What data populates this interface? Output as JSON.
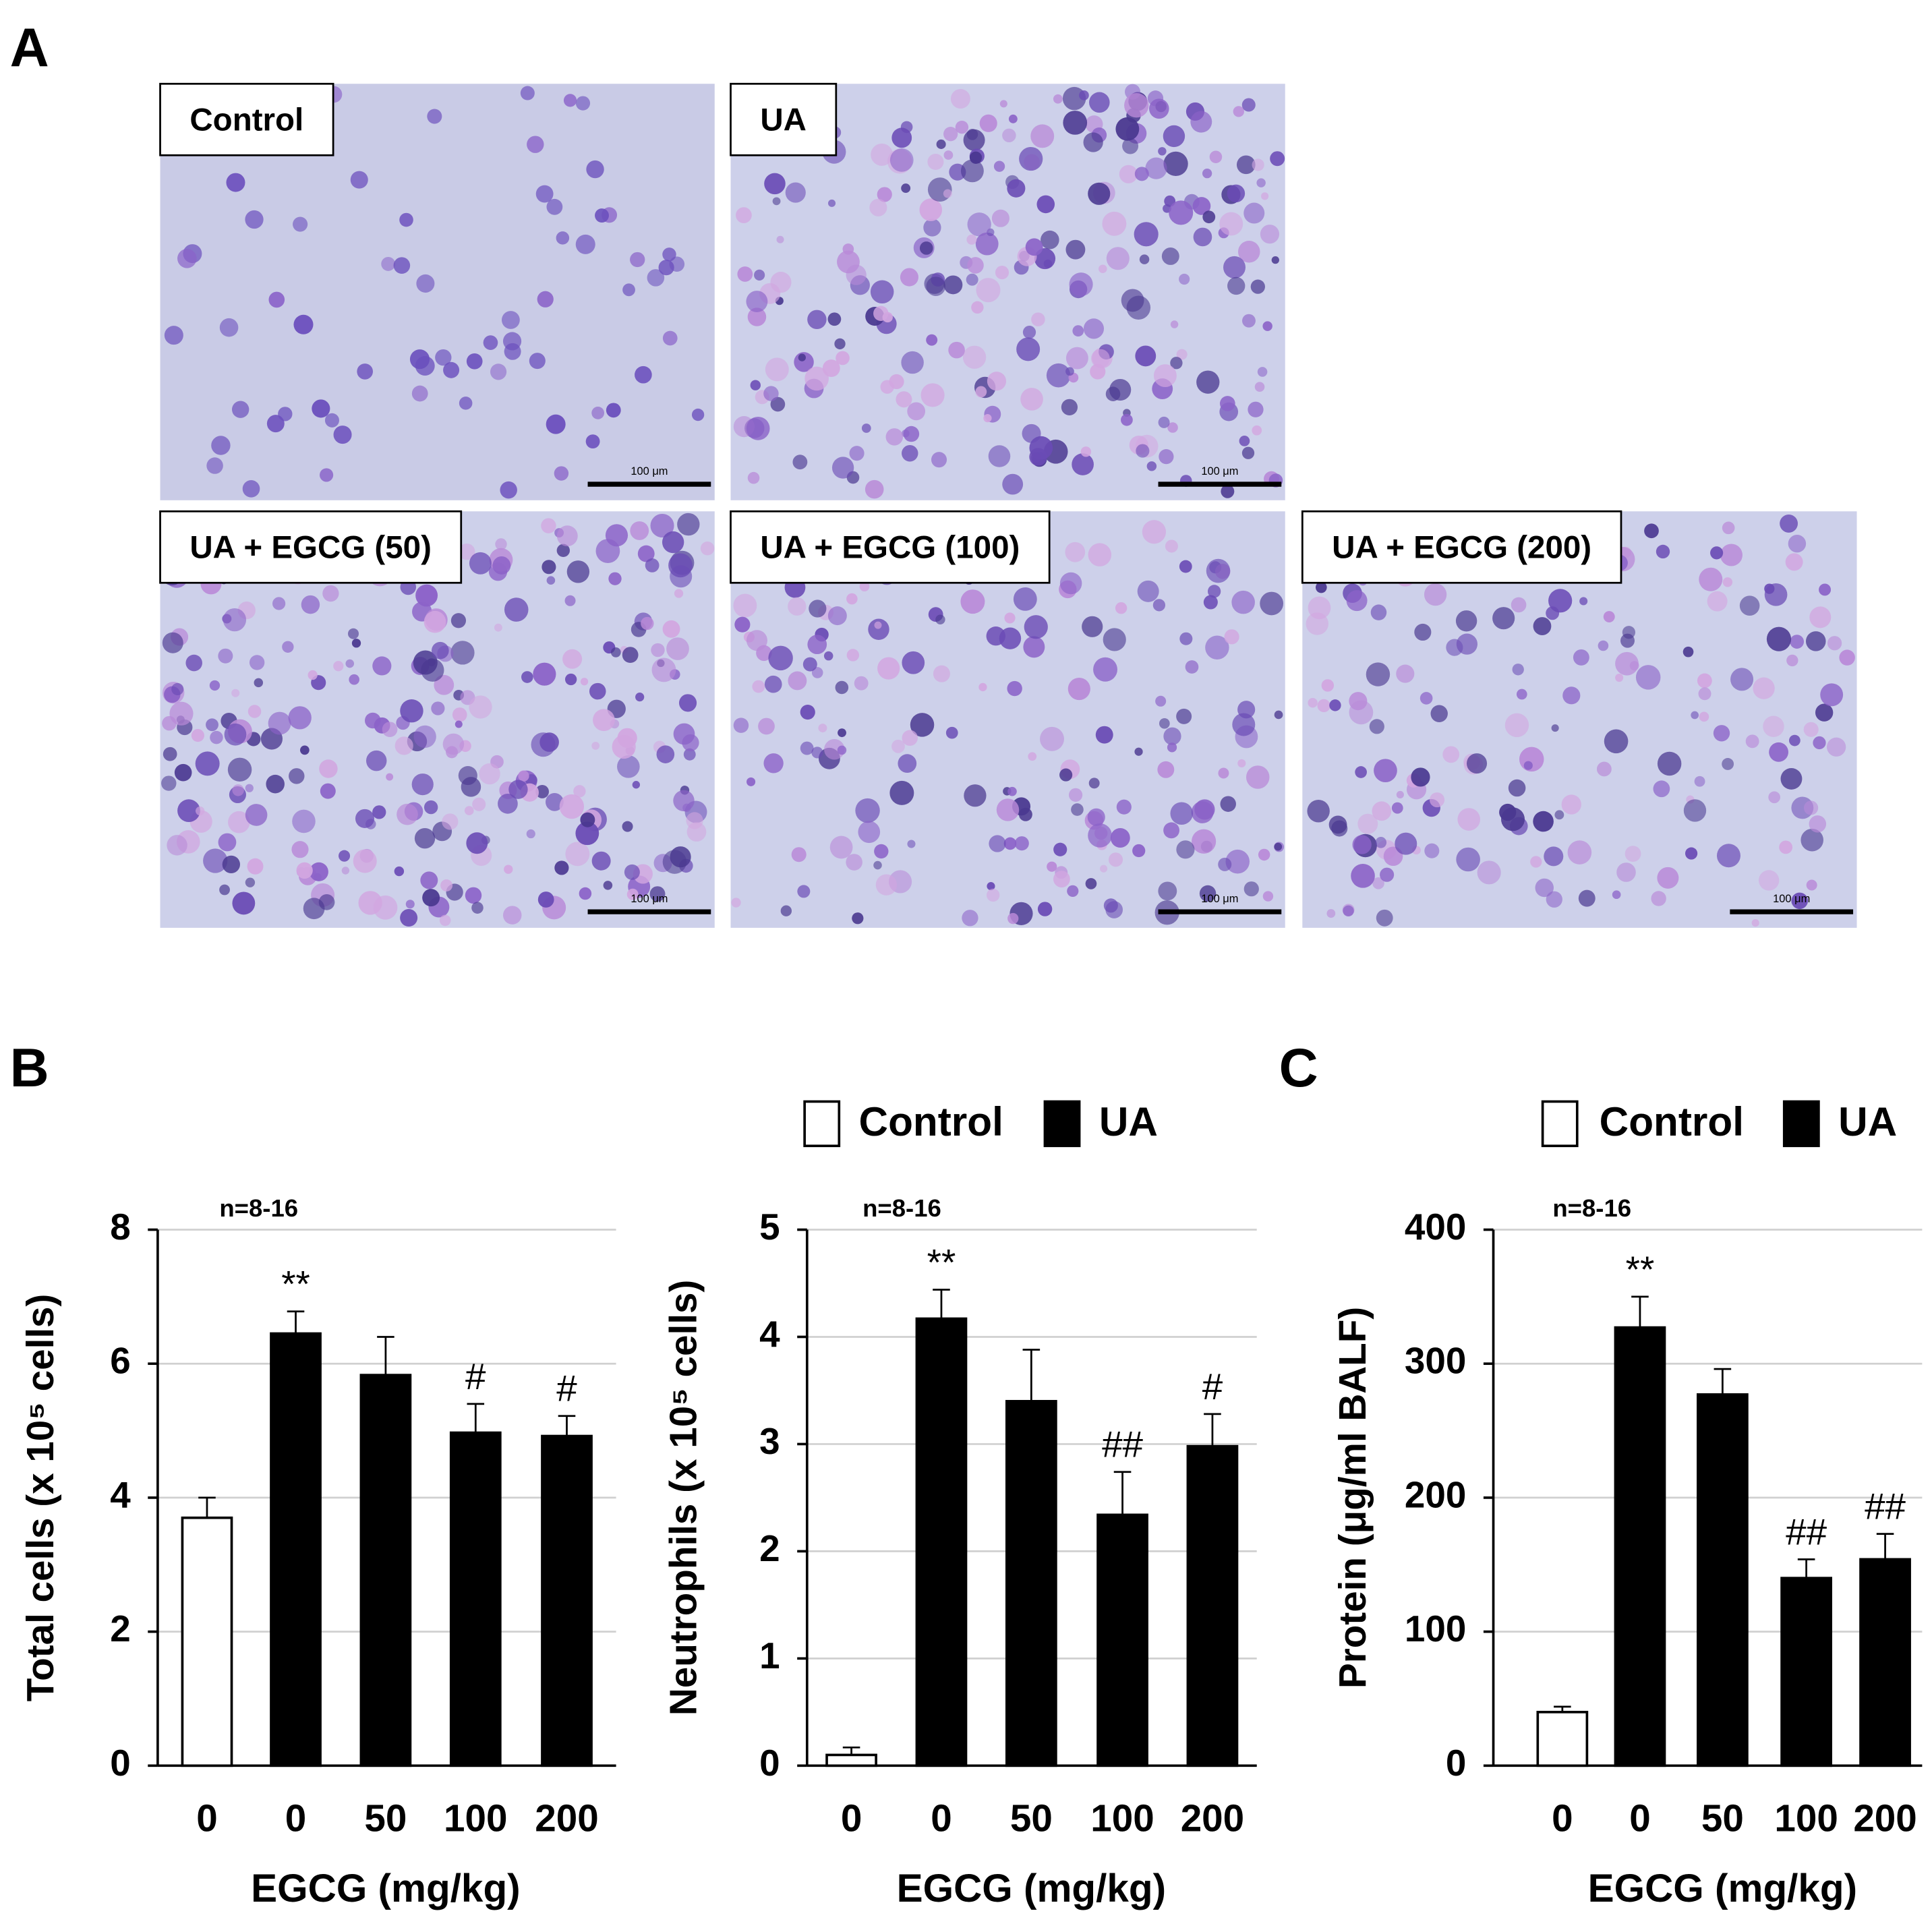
{
  "panels": [
    "A",
    "B",
    "C"
  ],
  "micrographs": [
    {
      "label": "Control",
      "scale_bar": "100 μm"
    },
    {
      "label": "UA",
      "scale_bar": "100 μm"
    },
    {
      "label": "UA + EGCG (50)",
      "scale_bar": "100 μm"
    },
    {
      "label": "UA + EGCG (100)",
      "scale_bar": "100 μm"
    },
    {
      "label": "UA + EGCG (200)",
      "scale_bar": "100 μm"
    }
  ],
  "chart_data": [
    {
      "type": "bar",
      "ylabel": "Total cells (x 10⁵ cells)",
      "xlabel": "EGCG (mg/kg)",
      "note": "n=8-16",
      "categories": [
        "0",
        "0",
        "50",
        "100",
        "200"
      ],
      "series": [
        {
          "color": "#ffffff",
          "values": [
            3.7,
            null,
            null,
            null,
            null
          ],
          "error": [
            0.3,
            null,
            null,
            null,
            null
          ]
        },
        {
          "color": "#000000",
          "values": [
            null,
            6.45,
            5.83,
            4.97,
            4.92
          ],
          "error": [
            null,
            0.33,
            0.57,
            0.43,
            0.3
          ]
        }
      ],
      "annotations": [
        null,
        "**",
        null,
        "#",
        "#"
      ],
      "ylim": [
        0,
        8
      ],
      "yticks": [
        0,
        2,
        4,
        6,
        8
      ],
      "grid": true,
      "legend": false
    },
    {
      "type": "bar",
      "ylabel": "Neutrophils (x 10⁵ cells)",
      "xlabel": "EGCG (mg/kg)",
      "note": "n=8-16",
      "categories": [
        "0",
        "0",
        "50",
        "100",
        "200"
      ],
      "series": [
        {
          "name": "Control",
          "color": "#ffffff",
          "values": [
            0.1,
            null,
            null,
            null,
            null
          ],
          "error": [
            0.07,
            null,
            null,
            null,
            null
          ]
        },
        {
          "name": "UA",
          "color": "#000000",
          "values": [
            null,
            4.17,
            3.4,
            2.34,
            2.98
          ],
          "error": [
            null,
            0.27,
            0.48,
            0.4,
            0.3
          ]
        }
      ],
      "annotations": [
        null,
        "**",
        null,
        "##",
        "#"
      ],
      "ylim": [
        0,
        5
      ],
      "yticks": [
        0,
        1,
        2,
        3,
        4,
        5
      ],
      "grid": true,
      "legend": true
    },
    {
      "type": "bar",
      "ylabel": "Protein (μg/ml BALF)",
      "xlabel": "EGCG (mg/kg)",
      "note": "n=8-16",
      "categories": [
        "0",
        "0",
        "50",
        "100",
        "200"
      ],
      "series": [
        {
          "name": "Control",
          "color": "#ffffff",
          "values": [
            40,
            null,
            null,
            null,
            null
          ],
          "error": [
            4,
            null,
            null,
            null,
            null
          ]
        },
        {
          "name": "UA",
          "color": "#000000",
          "values": [
            null,
            327,
            277,
            140,
            154
          ],
          "error": [
            null,
            23,
            19,
            14,
            19
          ]
        }
      ],
      "annotations": [
        null,
        "**",
        null,
        "##",
        "##"
      ],
      "ylim": [
        0,
        400
      ],
      "yticks": [
        0,
        100,
        200,
        300,
        400
      ],
      "grid": true,
      "legend": true
    }
  ]
}
